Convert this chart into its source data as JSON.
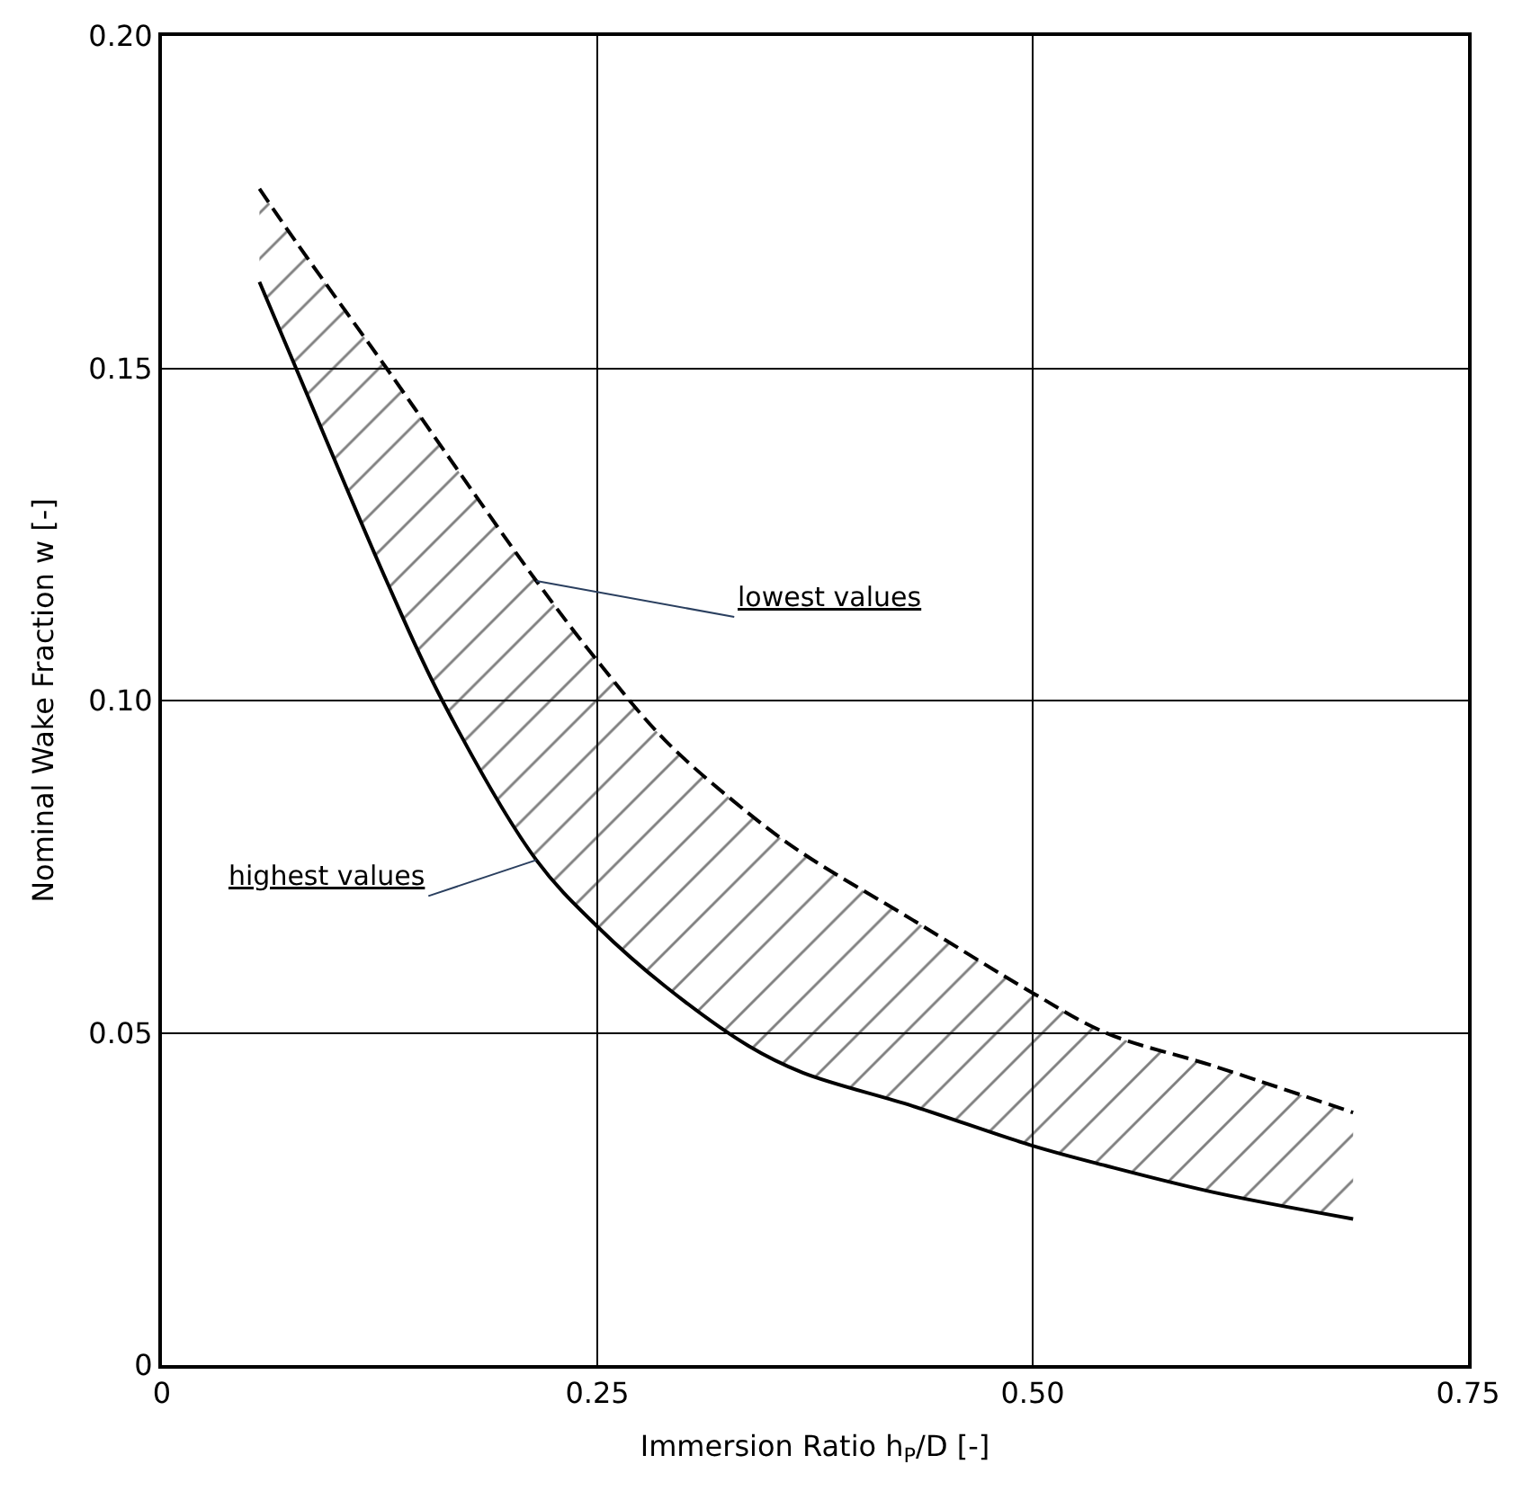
{
  "chart_data": {
    "type": "line",
    "xlabel": "Immersion Ratio h$_{P}$/D [-]",
    "ylabel": "Nominal Wake Fraction w [-]",
    "series": [
      {
        "color": "#000000",
        "line_style": "solid",
        "x": [
          0.056,
          0.077,
          0.129,
          0.161,
          0.215,
          0.25,
          0.289,
          0.337,
          0.368,
          0.431,
          0.5,
          0.542,
          0.604,
          0.684
        ],
        "values": [
          0.163,
          0.15,
          0.118,
          0.1,
          0.076,
          0.066,
          0.057,
          0.048,
          0.044,
          0.039,
          0.033,
          0.03,
          0.026,
          0.022
        ]
      },
      {
        "color": "#000000",
        "line_style": "dashed",
        "x": [
          0.056,
          0.077,
          0.129,
          0.161,
          0.215,
          0.25,
          0.289,
          0.337,
          0.368,
          0.431,
          0.5,
          0.542,
          0.604,
          0.684
        ],
        "values": [
          0.177,
          0.169,
          0.15,
          0.138,
          0.118,
          0.106,
          0.094,
          0.083,
          0.077,
          0.067,
          0.056,
          0.05,
          0.045,
          0.038
        ],
        "lower": [
          0.163,
          0.15,
          0.118,
          0.1,
          0.076,
          0.066,
          0.057,
          0.048,
          0.044,
          0.039,
          0.033,
          0.03,
          0.026,
          0.022
        ],
        "upper": [
          0.177,
          0.169,
          0.15,
          0.138,
          0.118,
          0.106,
          0.094,
          0.083,
          0.077,
          0.067,
          0.056,
          0.05,
          0.045,
          0.038
        ]
      }
    ],
    "annotations": [
      {
        "text": "lowest values",
        "x": 0.215,
        "y": 0.118
      },
      {
        "text": "highest values",
        "x": 0.215,
        "y": 0.076
      }
    ],
    "xlim": [
      0,
      0.75
    ],
    "xticks": [
      0,
      {
        "value": 0.25,
        "label": "0.25"
      },
      {
        "value": 0.5,
        "label": "0.50"
      },
      {
        "value": 0.75,
        "label": "0.75"
      }
    ],
    "ylim": [
      0,
      0.2
    ],
    "yticks": [
      0,
      {
        "value": 0.05,
        "label": "0.05"
      },
      {
        "value": 0.1,
        "label": "0.10"
      },
      {
        "value": 0.15,
        "label": "0.15"
      },
      {
        "value": 0.2,
        "label": "0.20"
      }
    ],
    "grid": true
  }
}
